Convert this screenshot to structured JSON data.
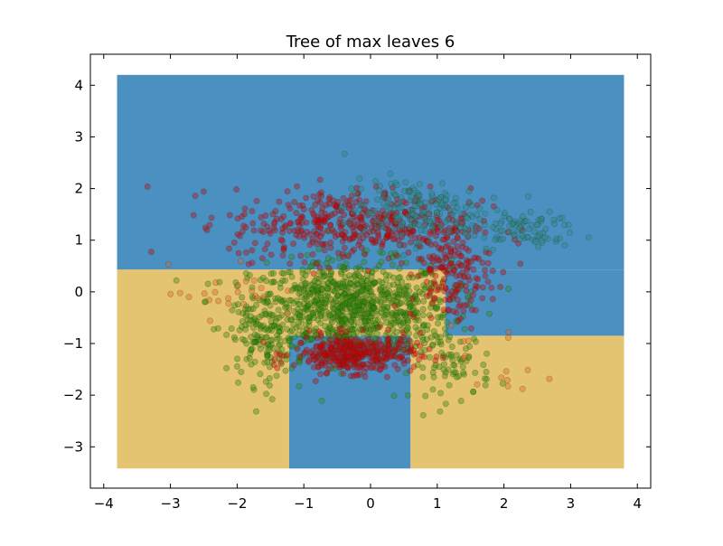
{
  "chart_data": {
    "type": "scatter",
    "title": "Tree of max leaves 6",
    "xlabel": "",
    "ylabel": "",
    "xlim": [
      -4.2,
      4.2
    ],
    "ylim": [
      -3.8,
      4.6
    ],
    "xticks": [
      -4,
      -3,
      -2,
      -1,
      0,
      1,
      2,
      3,
      4
    ],
    "yticks": [
      -3,
      -2,
      -1,
      0,
      1,
      2,
      3,
      4
    ],
    "xtick_labels": [
      "−4",
      "−3",
      "−2",
      "−1",
      "0",
      "1",
      "2",
      "3",
      "4"
    ],
    "ytick_labels": [
      "−3",
      "−2",
      "−1",
      "0",
      "1",
      "2",
      "3",
      "4"
    ],
    "grid": false,
    "legend": "none",
    "decision_regions": [
      {
        "class": "blue",
        "x": [
          -3.8,
          3.8
        ],
        "y": [
          0.43,
          4.2
        ]
      },
      {
        "class": "blue",
        "x": [
          1.12,
          3.8
        ],
        "y": [
          -0.85,
          0.43
        ]
      },
      {
        "class": "blue",
        "x": [
          -1.22,
          0.6
        ],
        "y": [
          -3.42,
          -0.85
        ]
      },
      {
        "class": "tan",
        "x": [
          -3.8,
          -1.22
        ],
        "y": [
          -3.42,
          0.43
        ]
      },
      {
        "class": "tan",
        "x": [
          -1.22,
          1.12
        ],
        "y": [
          -0.85,
          0.43
        ]
      },
      {
        "class": "tan",
        "x": [
          0.6,
          3.8
        ],
        "y": [
          -3.42,
          -0.85
        ]
      }
    ],
    "colors": {
      "region_blue": "#4a91c2",
      "region_tan": "#e4c371",
      "point_red": "#cc0000",
      "point_green": "#2e8b00",
      "point_teal": "#2a8a7a",
      "point_orange": "#e06a1c"
    },
    "point_clusters": [
      {
        "class": "green",
        "center": [
          -0.3,
          -0.3
        ],
        "spread": [
          0.75,
          0.45
        ],
        "count": 900
      },
      {
        "class": "green",
        "center": [
          -1.6,
          -0.9
        ],
        "spread": [
          0.25,
          0.45
        ],
        "count": 120
      },
      {
        "class": "green",
        "center": [
          1.2,
          -1.4
        ],
        "spread": [
          0.3,
          0.35
        ],
        "count": 80
      },
      {
        "class": "red",
        "center": [
          -0.25,
          -1.2
        ],
        "spread": [
          0.45,
          0.18
        ],
        "count": 380
      },
      {
        "class": "red",
        "center": [
          -0.3,
          1.3
        ],
        "spread": [
          0.9,
          0.35
        ],
        "count": 420
      },
      {
        "class": "red",
        "center": [
          1.2,
          0.4
        ],
        "spread": [
          0.3,
          0.5
        ],
        "count": 180
      },
      {
        "class": "teal",
        "center": [
          0.6,
          1.6
        ],
        "spread": [
          0.5,
          0.3
        ],
        "count": 160
      },
      {
        "class": "teal",
        "center": [
          2.2,
          1.2
        ],
        "spread": [
          0.45,
          0.18
        ],
        "count": 90
      },
      {
        "class": "orange",
        "center": [
          -2.2,
          0.0
        ],
        "spread": [
          0.4,
          0.25
        ],
        "count": 25
      },
      {
        "class": "orange",
        "center": [
          2.0,
          -1.4
        ],
        "spread": [
          0.4,
          0.4
        ],
        "count": 15
      }
    ]
  }
}
